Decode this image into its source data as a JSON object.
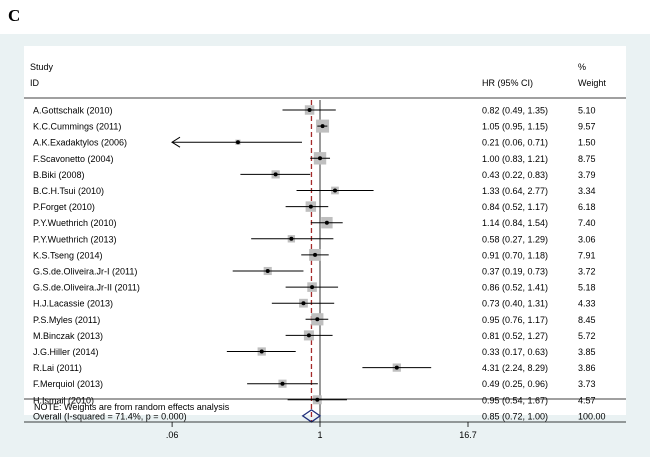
{
  "panel_letter": "C",
  "chart_data": {
    "type": "forest",
    "header": {
      "study_line1": "Study",
      "study_line2": "ID",
      "hr_label": "HR (95% CI)",
      "weight_line1": "%",
      "weight_line2": "Weight"
    },
    "x_axis": {
      "scale": "log",
      "ticks": [
        {
          "value": 0.06,
          "label": ".06"
        },
        {
          "value": 1,
          "label": "1"
        },
        {
          "value": 16.7,
          "label": "16.7"
        }
      ]
    },
    "overall_line_value": 0.85,
    "studies": [
      {
        "name": "A.Gottschalk (2010)",
        "hr": 0.82,
        "lo": 0.49,
        "hi": 1.35,
        "ci_text": "0.82 (0.49, 1.35)",
        "weight_text": "5.10",
        "weight": 5.1
      },
      {
        "name": "K.C.Cummings (2011)",
        "hr": 1.05,
        "lo": 0.95,
        "hi": 1.15,
        "ci_text": "1.05 (0.95, 1.15)",
        "weight_text": "9.57",
        "weight": 9.57
      },
      {
        "name": "A.K.Exadaktylos (2006)",
        "hr": 0.21,
        "lo": 0.06,
        "hi": 0.71,
        "ci_text": "0.21 (0.06, 0.71)",
        "weight_text": "1.50",
        "weight": 1.5,
        "arrow_left": true
      },
      {
        "name": "F.Scavonetto (2004)",
        "hr": 1.0,
        "lo": 0.83,
        "hi": 1.21,
        "ci_text": "1.00 (0.83, 1.21)",
        "weight_text": "8.75",
        "weight": 8.75
      },
      {
        "name": "B.Biki (2008)",
        "hr": 0.43,
        "lo": 0.22,
        "hi": 0.83,
        "ci_text": "0.43 (0.22, 0.83)",
        "weight_text": "3.79",
        "weight": 3.79
      },
      {
        "name": "B.C.H.Tsui (2010)",
        "hr": 1.33,
        "lo": 0.64,
        "hi": 2.77,
        "ci_text": "1.33 (0.64, 2.77)",
        "weight_text": "3.34",
        "weight": 3.34
      },
      {
        "name": "P.Forget (2010)",
        "hr": 0.84,
        "lo": 0.52,
        "hi": 1.17,
        "ci_text": "0.84 (0.52, 1.17)",
        "weight_text": "6.18",
        "weight": 6.18
      },
      {
        "name": "P.Y.Wuethrich (2010)",
        "hr": 1.14,
        "lo": 0.84,
        "hi": 1.54,
        "ci_text": "1.14 (0.84, 1.54)",
        "weight_text": "7.40",
        "weight": 7.4
      },
      {
        "name": "P.Y.Wuethrich (2013)",
        "hr": 0.58,
        "lo": 0.27,
        "hi": 1.29,
        "ci_text": "0.58 (0.27, 1.29)",
        "weight_text": "3.06",
        "weight": 3.06
      },
      {
        "name": "K.S.Tseng (2014)",
        "hr": 0.91,
        "lo": 0.7,
        "hi": 1.18,
        "ci_text": "0.91 (0.70, 1.18)",
        "weight_text": "7.91",
        "weight": 7.91
      },
      {
        "name": "G.S.de.Oliveira.Jr-I (2011)",
        "hr": 0.37,
        "lo": 0.19,
        "hi": 0.73,
        "ci_text": "0.37 (0.19, 0.73)",
        "weight_text": "3.72",
        "weight": 3.72
      },
      {
        "name": "G.S.de.Oliveira.Jr-II (2011)",
        "hr": 0.86,
        "lo": 0.52,
        "hi": 1.41,
        "ci_text": "0.86 (0.52, 1.41)",
        "weight_text": "5.18",
        "weight": 5.18
      },
      {
        "name": "H.J.Lacassie (2013)",
        "hr": 0.73,
        "lo": 0.4,
        "hi": 1.31,
        "ci_text": "0.73 (0.40, 1.31)",
        "weight_text": "4.33",
        "weight": 4.33
      },
      {
        "name": "P.S.Myles (2011)",
        "hr": 0.95,
        "lo": 0.76,
        "hi": 1.17,
        "ci_text": "0.95 (0.76, 1.17)",
        "weight_text": "8.45",
        "weight": 8.45
      },
      {
        "name": "M.Binczak (2013)",
        "hr": 0.81,
        "lo": 0.52,
        "hi": 1.27,
        "ci_text": "0.81 (0.52, 1.27)",
        "weight_text": "5.72",
        "weight": 5.72
      },
      {
        "name": "J.G.Hiller (2014)",
        "hr": 0.33,
        "lo": 0.17,
        "hi": 0.63,
        "ci_text": "0.33 (0.17, 0.63)",
        "weight_text": "3.85",
        "weight": 3.85
      },
      {
        "name": "R.Lai (2011)",
        "hr": 4.31,
        "lo": 2.24,
        "hi": 8.29,
        "ci_text": "4.31 (2.24, 8.29)",
        "weight_text": "3.86",
        "weight": 3.86
      },
      {
        "name": "F.Merquiol (2013)",
        "hr": 0.49,
        "lo": 0.25,
        "hi": 0.96,
        "ci_text": "0.49 (0.25, 0.96)",
        "weight_text": "3.73",
        "weight": 3.73
      },
      {
        "name": "H.Ismail (2010)",
        "hr": 0.95,
        "lo": 0.54,
        "hi": 1.67,
        "ci_text": "0.95 (0.54, 1.67)",
        "weight_text": "4.57",
        "weight": 4.57
      }
    ],
    "overall": {
      "label": "Overall  (I-squared = 71.4%, p = 0.000)",
      "hr": 0.85,
      "lo": 0.72,
      "hi": 1.0,
      "ci_text": "0.85 (0.72, 1.00)",
      "weight_text": "100.00"
    },
    "note": "NOTE: Weights are from random effects analysis",
    "colors": {
      "background": "#eaf2f3",
      "frame": "#ffffff",
      "box": "#bfbfbf",
      "line": "#000000",
      "overall_line": "#a52a2a",
      "diamond": "#1f2e7a"
    }
  }
}
